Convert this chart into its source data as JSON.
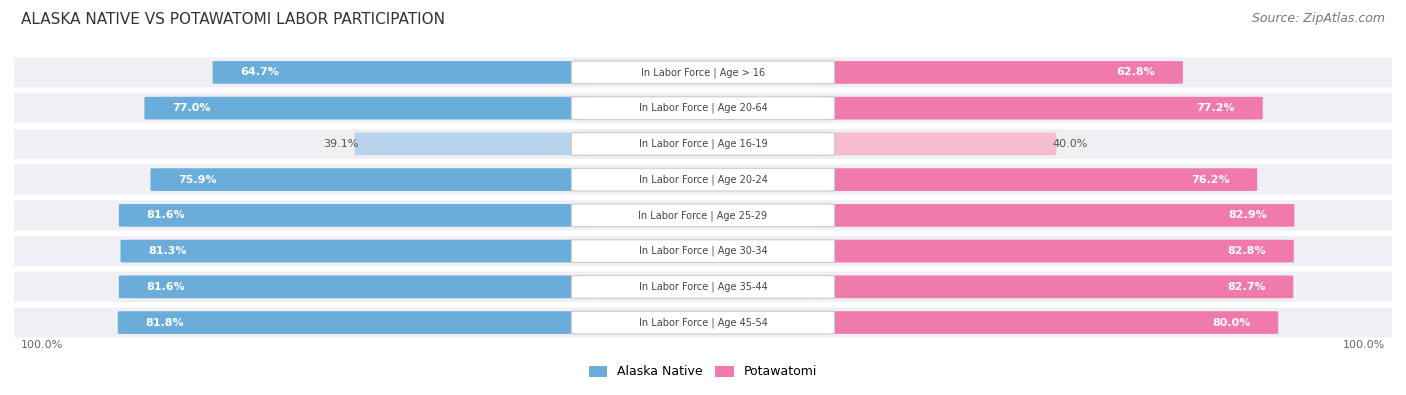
{
  "title": "ALASKA NATIVE VS POTAWATOMI LABOR PARTICIPATION",
  "source": "Source: ZipAtlas.com",
  "categories": [
    "In Labor Force | Age > 16",
    "In Labor Force | Age 20-64",
    "In Labor Force | Age 16-19",
    "In Labor Force | Age 20-24",
    "In Labor Force | Age 25-29",
    "In Labor Force | Age 30-34",
    "In Labor Force | Age 35-44",
    "In Labor Force | Age 45-54"
  ],
  "alaska_values": [
    64.7,
    77.0,
    39.1,
    75.9,
    81.6,
    81.3,
    81.6,
    81.8
  ],
  "potawatomi_values": [
    62.8,
    77.2,
    40.0,
    76.2,
    82.9,
    82.8,
    82.7,
    80.0
  ],
  "alaska_color": "#6aaddb",
  "alaska_color_light": "#b8d4ea",
  "potawatomi_color": "#f07aab",
  "potawatomi_color_light": "#f8bcd0",
  "background_color": "#ffffff",
  "row_bg_color": "#f0f0f4",
  "max_value": 100.0,
  "legend_alaska": "Alaska Native",
  "legend_potawatomi": "Potawatomi",
  "title_fontsize": 11,
  "source_fontsize": 9,
  "label_fontsize": 8,
  "value_fontsize": 8
}
